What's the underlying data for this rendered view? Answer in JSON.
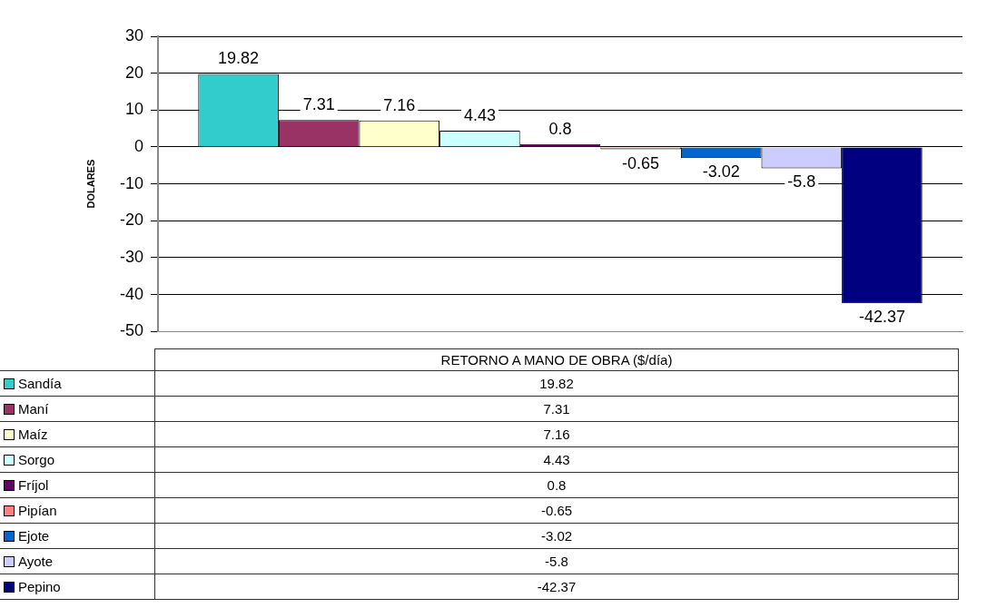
{
  "chart_data": {
    "type": "bar",
    "ylabel": "DOLARES",
    "categories": [
      "RETORNO A  MANO DE OBRA ($/día)"
    ],
    "series": [
      {
        "name": "Sandía",
        "color": "#33cccc",
        "values": [
          19.82
        ],
        "value_labels": [
          "19.82"
        ]
      },
      {
        "name": "Maní",
        "color": "#993366",
        "values": [
          7.31
        ],
        "value_labels": [
          "7.31"
        ]
      },
      {
        "name": "Maíz",
        "color": "#ffffcc",
        "values": [
          7.16
        ],
        "value_labels": [
          "7.16"
        ]
      },
      {
        "name": "Sorgo",
        "color": "#ccffff",
        "values": [
          4.43
        ],
        "value_labels": [
          "4.43"
        ]
      },
      {
        "name": "Fríjol",
        "color": "#660066",
        "values": [
          0.8
        ],
        "value_labels": [
          "0.8"
        ]
      },
      {
        "name": "Pipían",
        "color": "#ff8080",
        "values": [
          -0.65
        ],
        "value_labels": [
          "-0.65"
        ]
      },
      {
        "name": "Ejote",
        "color": "#0066cc",
        "values": [
          -3.02
        ],
        "value_labels": [
          "-3.02"
        ]
      },
      {
        "name": "Ayote",
        "color": "#ccccff",
        "values": [
          -5.8
        ],
        "value_labels": [
          "-5.8"
        ]
      },
      {
        "name": "Pepino",
        "color": "#000080",
        "values": [
          -42.37
        ],
        "value_labels": [
          "-42.37"
        ]
      }
    ],
    "annotations": [
      "19.82",
      "7.31",
      "7.16",
      "4.43",
      "0.8",
      "-0.65",
      "-3.02",
      "-5.8",
      "-42.37"
    ],
    "ylim": [
      -50,
      30
    ],
    "yticks": [
      -50,
      -40,
      -30,
      -20,
      -10,
      0,
      10,
      20,
      30
    ],
    "grid": "y",
    "legend": "bottom"
  }
}
